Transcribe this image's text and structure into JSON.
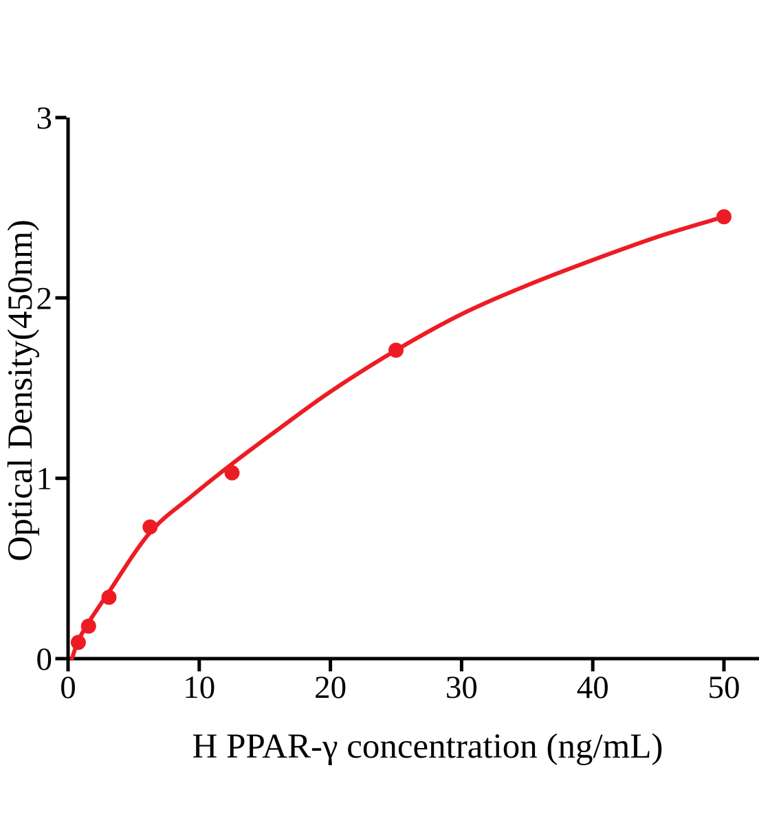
{
  "figure": {
    "background_color": "#ffffff",
    "axis_color": "#000000",
    "curve_color": "#ed1c24",
    "point_color": "#ed1c24"
  },
  "chart_data": {
    "type": "scatter",
    "title": "",
    "xlabel": "H PPAR-γ concentration (ng/mL)",
    "ylabel": "Optical Density(450nm)",
    "x_ticks": [
      0,
      10,
      20,
      30,
      40,
      50
    ],
    "y_ticks": [
      0,
      1,
      2,
      3
    ],
    "xlim": [
      0,
      52.6
    ],
    "ylim": [
      0,
      3
    ],
    "grid": false,
    "legend": null,
    "series": [
      {
        "name": "standard-points",
        "type": "scatter",
        "x": [
          0.78,
          1.56,
          3.12,
          6.25,
          12.5,
          25,
          50
        ],
        "y": [
          0.09,
          0.18,
          0.34,
          0.73,
          1.03,
          1.71,
          2.45
        ]
      },
      {
        "name": "fitted-curve",
        "type": "line",
        "x": [
          0.3,
          0.78,
          1.56,
          3.12,
          6.25,
          9.4,
          12.5,
          16,
          20,
          25,
          30,
          35,
          40,
          45,
          50
        ],
        "y": [
          0.0,
          0.1,
          0.2,
          0.37,
          0.7,
          0.9,
          1.08,
          1.27,
          1.48,
          1.71,
          1.91,
          2.07,
          2.21,
          2.34,
          2.45
        ]
      }
    ]
  }
}
